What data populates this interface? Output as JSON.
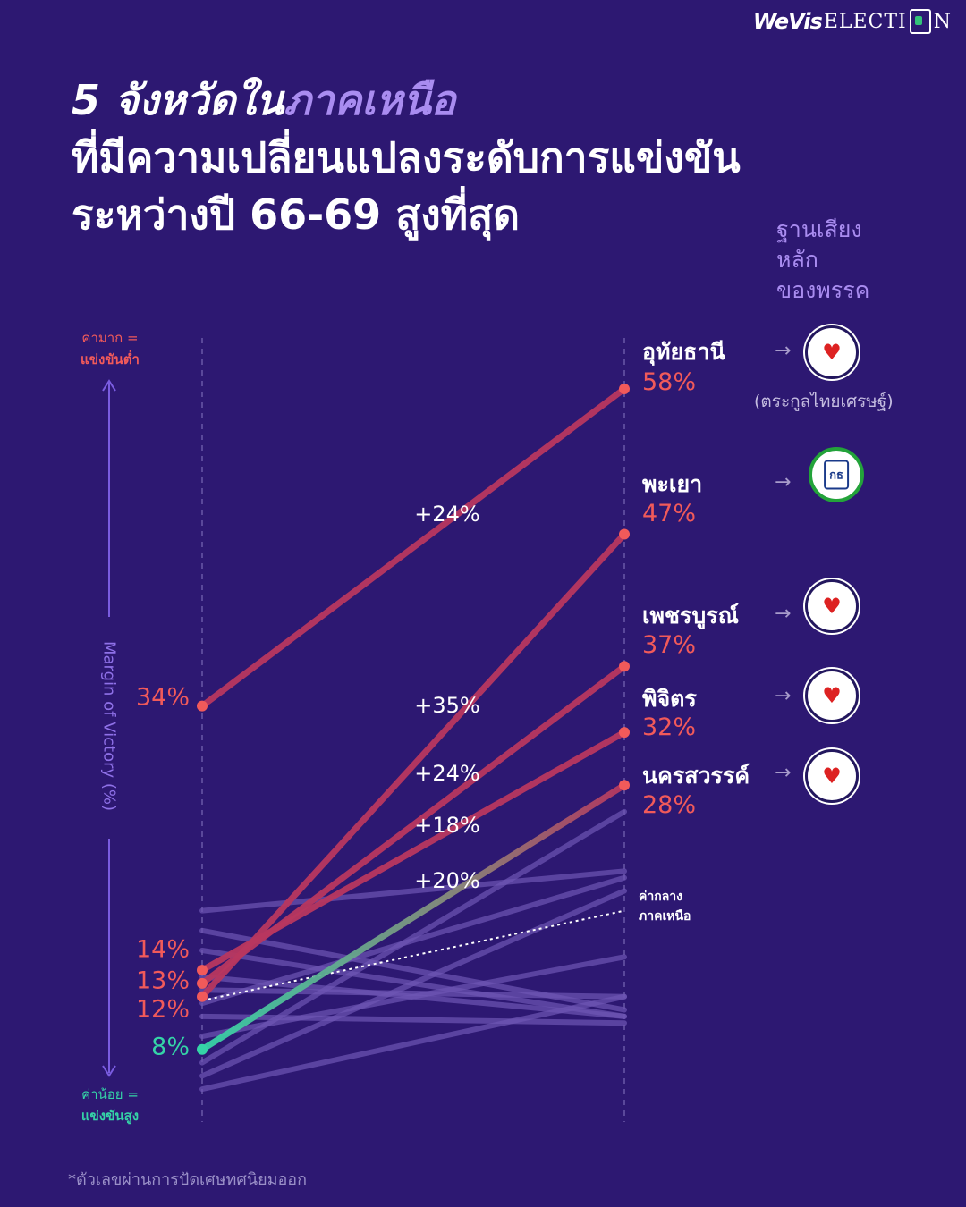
{
  "logo": {
    "brand": "WeVis",
    "suffix_a": "ELECTI",
    "suffix_b": "N"
  },
  "title": {
    "line1_a": "5 จังหวัดใน",
    "line1_b": "ภาคเหนือ",
    "line2": "ที่มีความเปลี่ยนแปลงระดับการแข่งขัน",
    "line3": "ระหว่างปี 66-69 สูงที่สุด"
  },
  "legend_header": [
    "ฐานเสียง",
    "หลัก",
    "ของพรรค"
  ],
  "axis": {
    "title": "Margin of Victory (%)",
    "top_a": "ค่ามาก =",
    "top_b": "แข่งขันต่ำ",
    "bottom_a": "ค่าน้อย =",
    "bottom_b": "แข่งขันสูง"
  },
  "median_label": [
    "ค่ากลาง",
    "ภาคเหนือ"
  ],
  "note": "(ตระกูลไทยเศรษฐ์)",
  "footnote": "*ตัวเลขผ่านการปัดเศษทศนิยมออก",
  "colors": {
    "background": "#2d1872",
    "highlight": "#b8375f",
    "red": "#f15a5a",
    "green": "#35d4a7",
    "accent": "#a98cf0"
  },
  "chart_data": {
    "type": "line",
    "x": [
      "66",
      "69"
    ],
    "ylim": [
      0,
      68
    ],
    "ylabel": "Margin of Victory (%)",
    "highlighted": [
      {
        "name": "อุทัยธานี",
        "values": [
          34,
          58
        ],
        "start_label": "34%",
        "end_label": "58%",
        "change": "+24%",
        "party_icon": "heart-map-icon"
      },
      {
        "name": "พะเยา",
        "values": [
          12,
          47
        ],
        "start_label": "12%",
        "end_label": "47%",
        "change": "+35%",
        "party_icon": "kor-sor-badge-icon"
      },
      {
        "name": "เพชรบูรณ์",
        "values": [
          13,
          37
        ],
        "start_label": "13%",
        "end_label": "37%",
        "change": "+24%",
        "party_icon": "heart-map-icon"
      },
      {
        "name": "พิจิตร",
        "values": [
          14,
          32
        ],
        "start_label": "14%",
        "end_label": "32%",
        "change": "+18%",
        "party_icon": "heart-map-icon"
      },
      {
        "name": "นครสวรรค์",
        "values": [
          8,
          28
        ],
        "start_label": "8%",
        "end_label": "28%",
        "change": "+20%",
        "party_icon": "heart-map-icon"
      }
    ],
    "others": [
      {
        "values": [
          18.5,
          21.5
        ]
      },
      {
        "values": [
          17,
          11
        ]
      },
      {
        "values": [
          15.5,
          10.5
        ]
      },
      {
        "values": [
          13.5,
          10.5
        ]
      },
      {
        "values": [
          12.5,
          12
        ]
      },
      {
        "values": [
          11.5,
          21
        ]
      },
      {
        "values": [
          10.5,
          10
        ]
      },
      {
        "values": [
          9,
          15
        ]
      },
      {
        "values": [
          7,
          26
        ]
      },
      {
        "values": [
          6,
          20
        ]
      },
      {
        "values": [
          5,
          12
        ]
      }
    ],
    "median": {
      "values": [
        11.7,
        18.5
      ]
    }
  }
}
